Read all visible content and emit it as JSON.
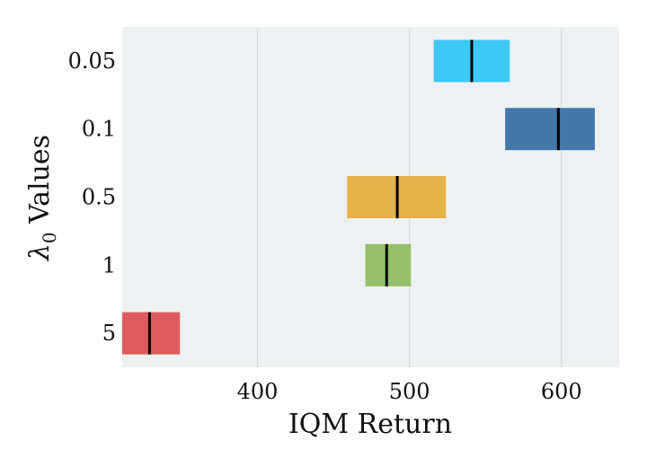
{
  "chart_data": {
    "type": "interval",
    "xlabel": "IQM Return",
    "ylabel_symbol": "λ",
    "ylabel_subscript": "0",
    "ylabel_text": " Values",
    "xlim": [
      311,
      638
    ],
    "xticks": [
      400,
      500,
      600
    ],
    "grid": true,
    "plot_background": "#edf1f1",
    "grid_color": "#d5dbdb",
    "categories": [
      "0.05",
      "0.1",
      "0.5",
      "1",
      "5"
    ],
    "intervals": [
      {
        "category": "0.05",
        "low": 516,
        "high": 566,
        "point": 541,
        "color": "#3ec8f4"
      },
      {
        "category": "0.1",
        "low": 563,
        "high": 622,
        "point": 598,
        "color": "#4477aa"
      },
      {
        "category": "0.5",
        "low": 459,
        "high": 524,
        "point": 492,
        "color": "#e6b34a"
      },
      {
        "category": "1",
        "low": 471,
        "high": 501,
        "point": 485,
        "color": "#95bf6b"
      },
      {
        "category": "5",
        "low": 311,
        "high": 349,
        "point": 329,
        "color": "#df5b5e"
      }
    ]
  }
}
